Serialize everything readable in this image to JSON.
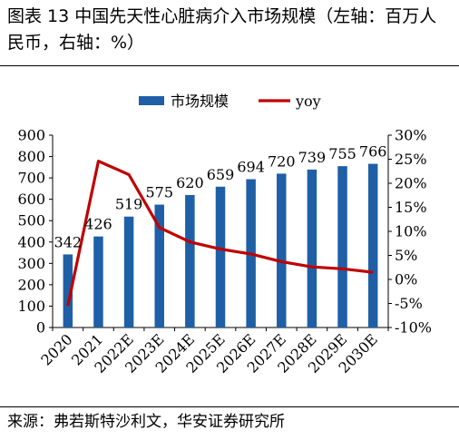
{
  "title": "图表 13 中国先天性心脏病介入市场规模（左轴：百万人民币，右轴：%）",
  "source": "来源：弗若斯特沙利文，华安证券研究所",
  "chart_data": {
    "type": "bar",
    "categories": [
      "2020",
      "2021",
      "2022E",
      "2023E",
      "2024E",
      "2025E",
      "2026E",
      "2027E",
      "2028E",
      "2029E",
      "2030E"
    ],
    "series": [
      {
        "name": "市场规模",
        "type": "bar",
        "axis": "left",
        "color": "#1f5fa6",
        "values": [
          342,
          426,
          519,
          575,
          620,
          659,
          694,
          720,
          739,
          755,
          766
        ]
      },
      {
        "name": "yoy",
        "type": "line",
        "axis": "right",
        "color": "#c00000",
        "values": [
          -5.5,
          24.6,
          21.8,
          10.8,
          7.8,
          6.3,
          5.3,
          3.7,
          2.6,
          2.2,
          1.5
        ]
      }
    ],
    "data_labels": [
      "342",
      "426",
      "519",
      "575",
      "620",
      "659",
      "694",
      "720",
      "739",
      "755",
      "766"
    ],
    "left_axis": {
      "min": 0,
      "max": 900,
      "ticks": [
        "0",
        "100",
        "200",
        "300",
        "400",
        "500",
        "600",
        "700",
        "800",
        "900"
      ]
    },
    "right_axis": {
      "min": -10,
      "max": 30,
      "ticks": [
        "-10%",
        "-5%",
        "0%",
        "5%",
        "10%",
        "15%",
        "20%",
        "25%",
        "30%"
      ]
    },
    "legend_position": "top",
    "grid": false
  }
}
